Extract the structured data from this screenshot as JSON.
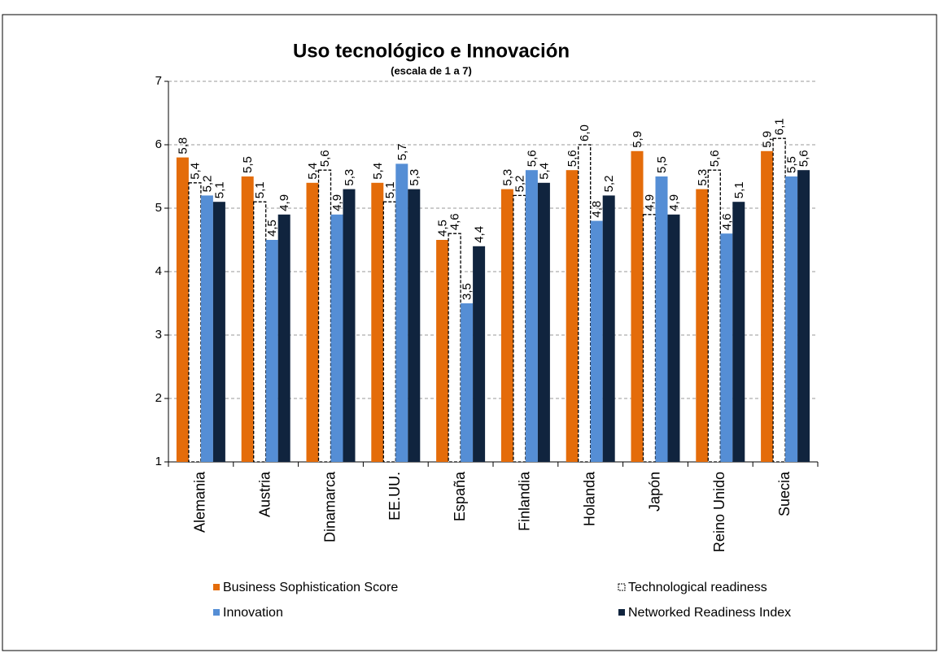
{
  "chart_data": {
    "type": "bar",
    "title": "Uso tecnológico e Innovación",
    "subtitle": "(escala de 1 a 7)",
    "categories": [
      "Alemania",
      "Austria",
      "Dinamarca",
      "EE.UU.",
      "España",
      "Finlandia",
      "Holanda",
      "Japón",
      "Reino Unido",
      "Suecia"
    ],
    "series": [
      {
        "name": "Business Sophistication Score",
        "color": "#e46c0a",
        "style": "solid",
        "values": [
          5.8,
          5.5,
          5.4,
          5.4,
          4.5,
          5.3,
          5.6,
          5.9,
          5.3,
          5.9
        ],
        "value_labels": [
          "5,8",
          "5,5",
          "5,4",
          "5,4",
          "4,5",
          "5,3",
          "5,6",
          "5,9",
          "5,3",
          "5,9"
        ]
      },
      {
        "name": "Technological readiness",
        "color": "#ffffff",
        "style": "dashed",
        "values": [
          5.4,
          5.1,
          5.6,
          5.1,
          4.6,
          5.2,
          6.0,
          4.9,
          5.6,
          6.1
        ],
        "value_labels": [
          "5,4",
          "5,1",
          "5,6",
          "5,1",
          "4,6",
          "5,2",
          "6,0",
          "4,9",
          "5,6",
          "6,1"
        ]
      },
      {
        "name": "Innovation",
        "color": "#558ed5",
        "style": "solid",
        "values": [
          5.2,
          4.5,
          4.9,
          5.7,
          3.5,
          5.6,
          4.8,
          5.5,
          4.6,
          5.5
        ],
        "value_labels": [
          "5,2",
          "4,5",
          "4,9",
          "5,7",
          "3,5",
          "5,6",
          "4,8",
          "5,5",
          "4,6",
          "5,5"
        ]
      },
      {
        "name": "Networked Readiness Index",
        "color": "#10243e",
        "style": "solid",
        "values": [
          5.1,
          4.9,
          5.3,
          5.3,
          4.4,
          5.4,
          5.2,
          4.9,
          5.1,
          5.6
        ],
        "value_labels": [
          "5,1",
          "4,9",
          "5,3",
          "5,3",
          "4,4",
          "5,4",
          "5,2",
          "4,9",
          "5,1",
          "5,6"
        ]
      }
    ],
    "ylim": [
      1,
      7
    ],
    "yticks": [
      1,
      2,
      3,
      4,
      5,
      6,
      7
    ],
    "grid": true
  }
}
